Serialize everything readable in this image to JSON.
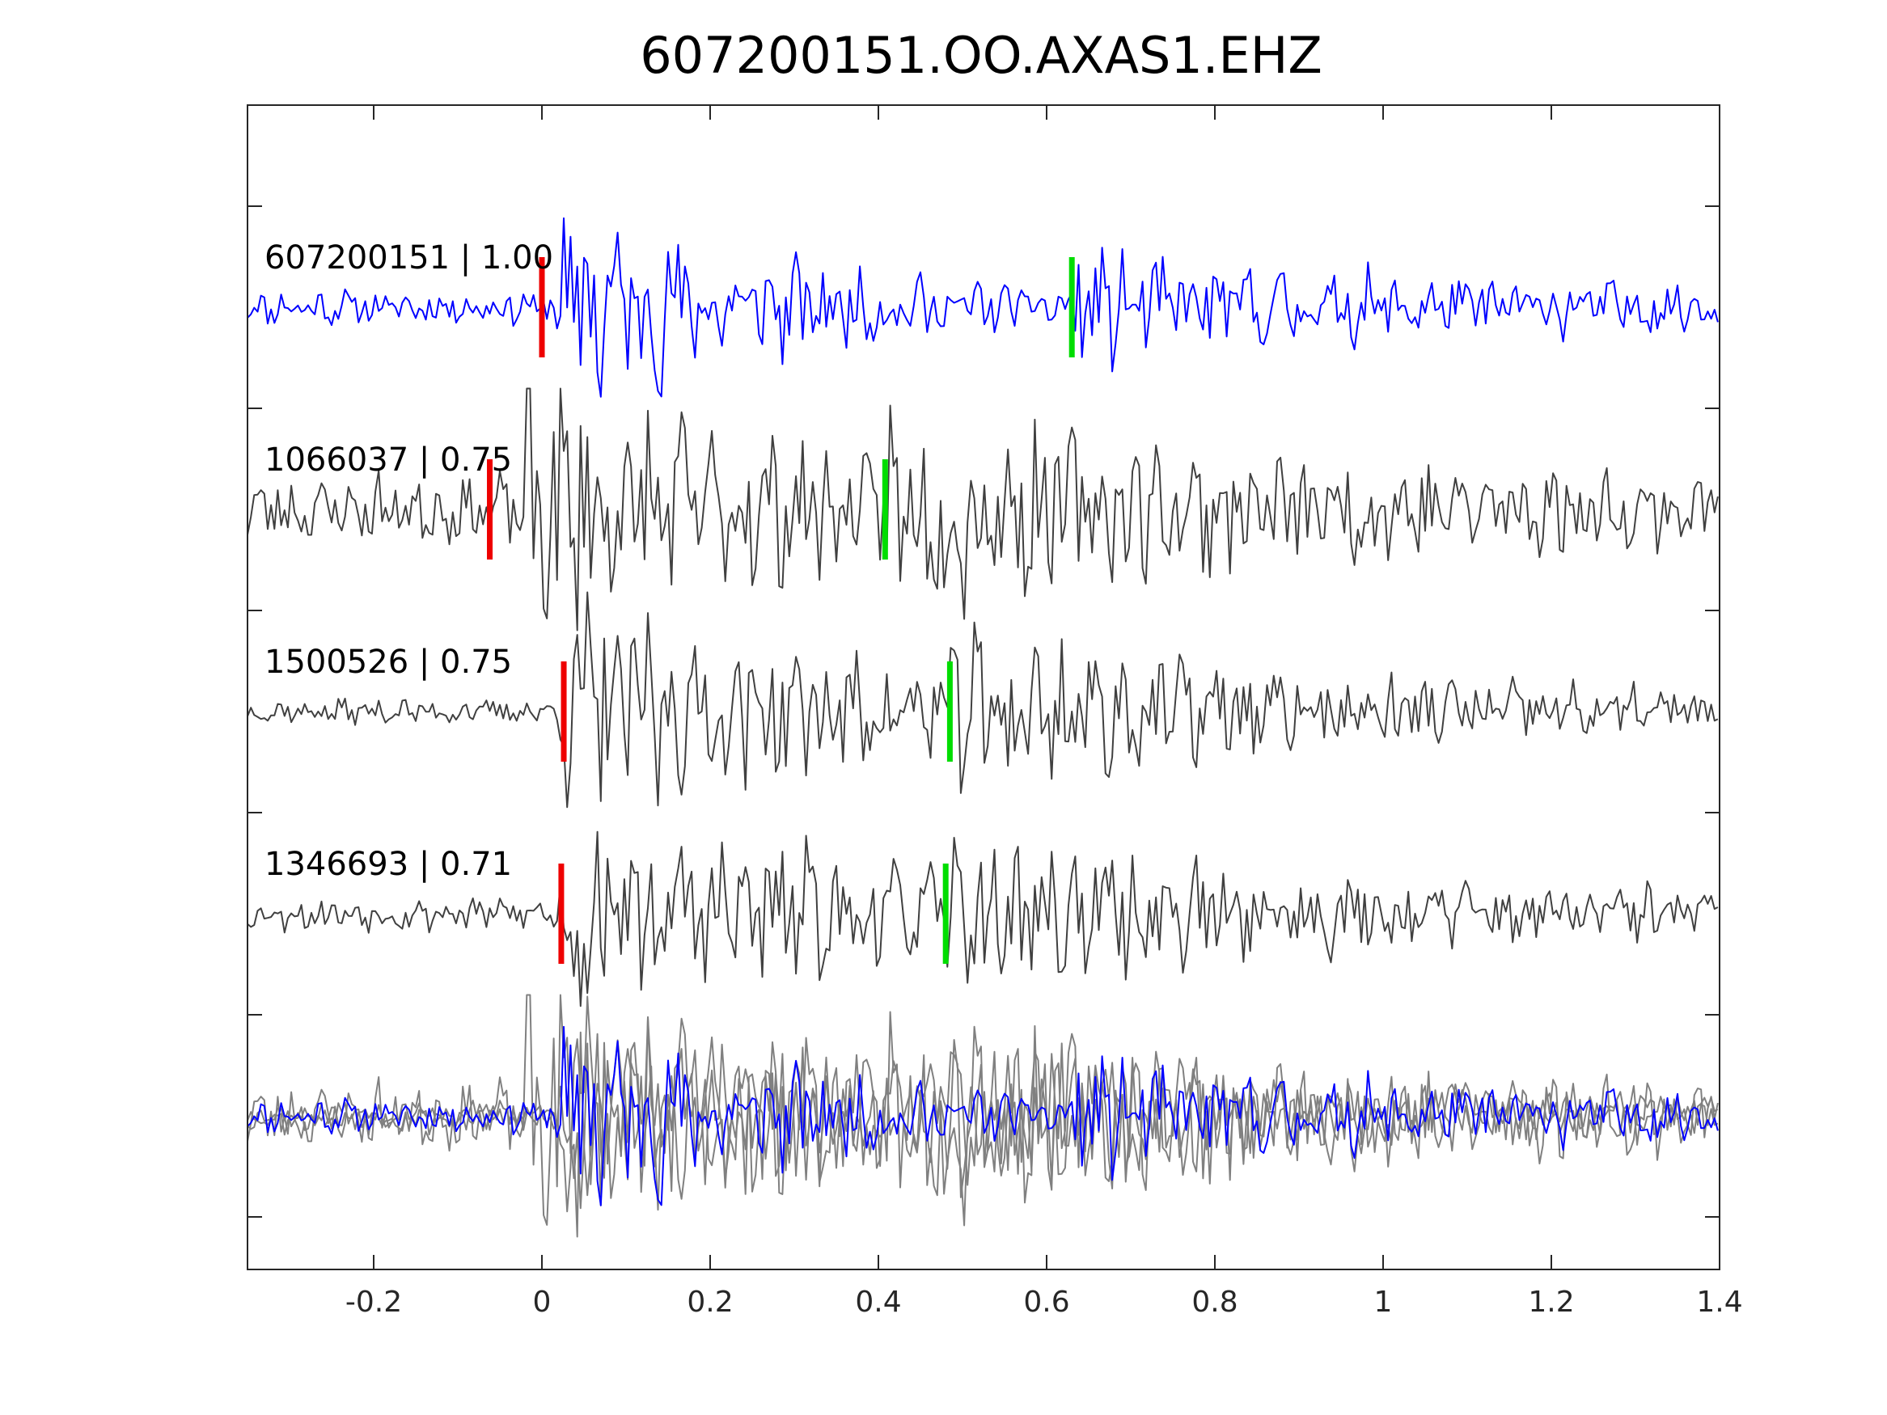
{
  "chart_data": {
    "type": "line",
    "title": "607200151.OO.AXAS1.EHZ",
    "xlabel": "",
    "ylabel": "",
    "xlim": [
      -0.35,
      1.4
    ],
    "x_ticks": [
      -0.2,
      0,
      0.2,
      0.4,
      0.6,
      0.8,
      1,
      1.2,
      1.4
    ],
    "x_tick_labels": [
      "-0.2",
      "0",
      "0.2",
      "0.4",
      "0.6",
      "0.8",
      "1",
      "1.2",
      "1.4"
    ],
    "grid": false,
    "legend": "none",
    "traces": [
      {
        "name": "607200151",
        "label": "607200151 | 1.00",
        "color": "#0000ff",
        "p_pick": 0.0,
        "s_pick": 0.63,
        "noise": 0.14,
        "onset": 0.015,
        "peak": 0.95,
        "coda": 0.3,
        "decay": 0.22,
        "seed": 11
      },
      {
        "name": "1066037",
        "label": "1066037 | 0.75",
        "color": "#404040",
        "p_pick": -0.062,
        "s_pick": 0.408,
        "noise": 0.28,
        "onset": -0.03,
        "peak": 1.0,
        "coda": 0.42,
        "decay": 0.3,
        "seed": 23
      },
      {
        "name": "1500526",
        "label": "1500526 | 0.75",
        "color": "#404040",
        "p_pick": 0.026,
        "s_pick": 0.485,
        "noise": 0.1,
        "onset": 0.02,
        "peak": 1.0,
        "coda": 0.4,
        "decay": 0.35,
        "seed": 37
      },
      {
        "name": "1346693",
        "label": "1346693 | 0.71",
        "color": "#404040",
        "p_pick": 0.023,
        "s_pick": 0.48,
        "noise": 0.14,
        "onset": 0.02,
        "peak": 0.95,
        "coda": 0.32,
        "decay": 0.35,
        "seed": 53
      }
    ],
    "overlay_colors": [
      "#808080",
      "#0000ff"
    ],
    "p_pick_color": "#ee0000",
    "s_pick_color": "#00dd00"
  }
}
